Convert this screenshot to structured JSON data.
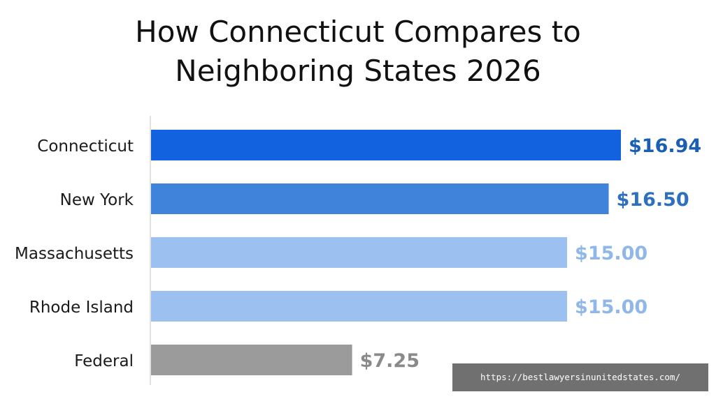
{
  "chart_data": {
    "type": "bar",
    "orientation": "horizontal",
    "title": "How Connecticut Compares to Neighboring States 2026",
    "title_lines": [
      "How Connecticut Compares to",
      "Neighboring States 2026"
    ],
    "categories": [
      "Connecticut",
      "New York",
      "Massachusetts",
      "Rhode Island",
      "Federal"
    ],
    "values": [
      16.94,
      16.5,
      15.0,
      15.0,
      7.25
    ],
    "value_labels": [
      "$16.94",
      "$16.50",
      "$15.00",
      "$15.00",
      "$7.25"
    ],
    "bar_colors": [
      "#1262df",
      "#3f83da",
      "#9cc0ef",
      "#9cc0ef",
      "#9b9b9b"
    ],
    "label_colors": [
      "#1b5fb5",
      "#2e6fc0",
      "#8fb7e8",
      "#8fb7e8",
      "#8a8a8a"
    ],
    "xlim": [
      0,
      16.94
    ],
    "grid": false,
    "legend": "none"
  },
  "watermark": {
    "text": "https://bestlawyersinunitedstates.com/"
  }
}
